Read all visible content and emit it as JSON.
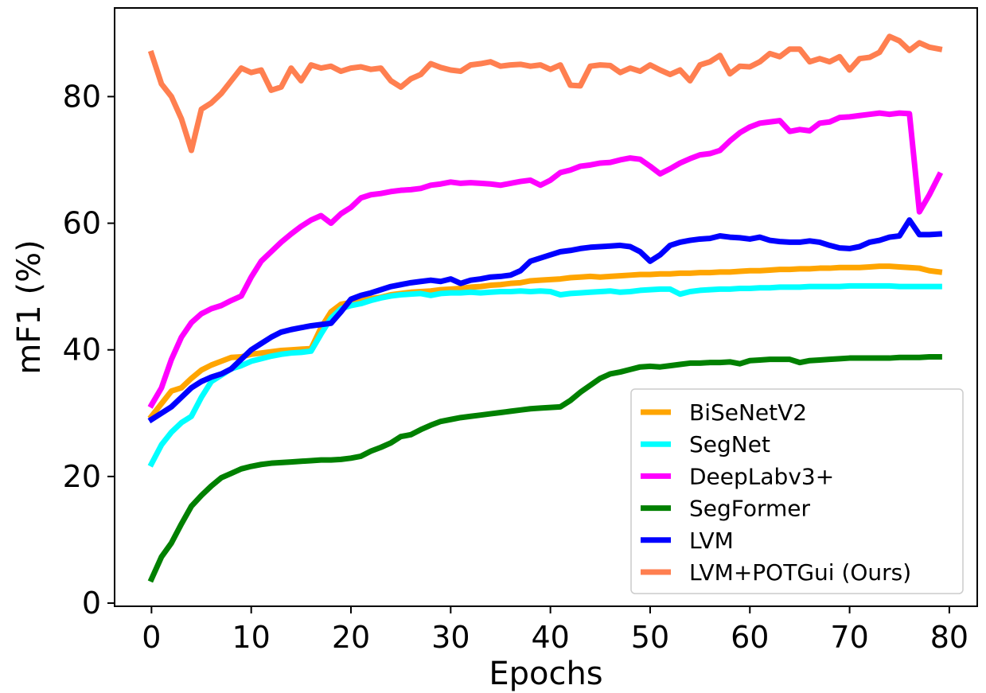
{
  "chart_data": {
    "type": "line",
    "title": "",
    "xlabel": "Epochs",
    "ylabel": "mF1 (%)",
    "xlim": [
      -3.7,
      82.8
    ],
    "ylim": [
      -0.5,
      94
    ],
    "xticks": [
      0,
      10,
      20,
      30,
      40,
      50,
      60,
      70,
      80
    ],
    "yticks": [
      0,
      20,
      40,
      60,
      80
    ],
    "grid": false,
    "legend_position": "lower-right",
    "series": [
      {
        "name": "BiSeNetV2",
        "color": "#ffa500",
        "values": [
          29.5,
          31.5,
          33.5,
          34.0,
          35.5,
          36.8,
          37.6,
          38.2,
          38.8,
          38.9,
          39.3,
          39.5,
          39.7,
          39.9,
          40.0,
          40.1,
          40.2,
          43.5,
          46.0,
          47.2,
          47.5,
          47.8,
          48.1,
          48.3,
          48.7,
          48.9,
          49.1,
          49.2,
          49.3,
          49.5,
          49.6,
          49.7,
          49.9,
          50.0,
          50.2,
          50.3,
          50.5,
          50.6,
          50.9,
          51.0,
          51.1,
          51.2,
          51.4,
          51.5,
          51.6,
          51.5,
          51.6,
          51.7,
          51.8,
          51.9,
          51.9,
          52.0,
          52.0,
          52.1,
          52.1,
          52.2,
          52.2,
          52.3,
          52.3,
          52.4,
          52.5,
          52.5,
          52.6,
          52.7,
          52.7,
          52.8,
          52.8,
          52.9,
          52.9,
          53.0,
          53.0,
          53.0,
          53.1,
          53.2,
          53.2,
          53.1,
          53.0,
          52.9,
          52.5,
          52.3
        ]
      },
      {
        "name": "SegNet",
        "color": "#00ffff",
        "values": [
          22.0,
          25.0,
          27.0,
          28.5,
          29.5,
          32.5,
          35.0,
          36.0,
          37.0,
          37.5,
          38.2,
          38.6,
          39.0,
          39.3,
          39.5,
          39.6,
          39.8,
          42.5,
          45.0,
          46.5,
          47.0,
          47.3,
          47.8,
          48.2,
          48.5,
          48.7,
          48.8,
          48.9,
          48.6,
          48.9,
          49.0,
          49.0,
          49.1,
          49.0,
          49.1,
          49.2,
          49.2,
          49.3,
          49.2,
          49.3,
          49.2,
          48.7,
          48.9,
          49.0,
          49.1,
          49.2,
          49.3,
          49.1,
          49.2,
          49.4,
          49.5,
          49.6,
          49.6,
          48.8,
          49.2,
          49.4,
          49.5,
          49.6,
          49.6,
          49.7,
          49.7,
          49.8,
          49.8,
          49.9,
          49.9,
          49.9,
          50.0,
          50.0,
          50.0,
          50.0,
          50.1,
          50.1,
          50.1,
          50.1,
          50.1,
          50.0,
          50.0,
          50.0,
          50.0,
          50.0
        ]
      },
      {
        "name": "DeepLabv3+",
        "color": "#ff00ff",
        "values": [
          31.3,
          34.0,
          38.5,
          42.0,
          44.3,
          45.7,
          46.5,
          47.0,
          47.8,
          48.5,
          51.5,
          54.0,
          55.5,
          57.0,
          58.3,
          59.5,
          60.5,
          61.2,
          60.0,
          61.5,
          62.5,
          64.0,
          64.5,
          64.7,
          65.0,
          65.2,
          65.3,
          65.5,
          66.0,
          66.2,
          66.5,
          66.3,
          66.4,
          66.3,
          66.2,
          66.0,
          66.3,
          66.6,
          66.8,
          66.0,
          66.8,
          68.0,
          68.4,
          69.0,
          69.2,
          69.5,
          69.6,
          70.0,
          70.3,
          70.1,
          69.0,
          67.8,
          68.6,
          69.5,
          70.2,
          70.8,
          71.0,
          71.5,
          73.0,
          74.3,
          75.2,
          75.8,
          76.0,
          76.2,
          74.5,
          74.8,
          74.6,
          75.8,
          76.0,
          76.7,
          76.8,
          77.0,
          77.2,
          77.4,
          77.2,
          77.4,
          77.3,
          61.8,
          64.5,
          67.6
        ]
      },
      {
        "name": "SegFormer",
        "color": "#008000",
        "values": [
          3.8,
          7.3,
          9.5,
          12.5,
          15.3,
          17.0,
          18.5,
          19.8,
          20.5,
          21.2,
          21.6,
          21.9,
          22.1,
          22.2,
          22.3,
          22.4,
          22.5,
          22.6,
          22.6,
          22.7,
          22.9,
          23.2,
          24.0,
          24.6,
          25.3,
          26.3,
          26.6,
          27.4,
          28.1,
          28.7,
          29.0,
          29.3,
          29.5,
          29.7,
          29.9,
          30.1,
          30.3,
          30.5,
          30.7,
          30.8,
          30.9,
          31.0,
          32.0,
          33.3,
          34.4,
          35.5,
          36.2,
          36.5,
          36.9,
          37.3,
          37.4,
          37.3,
          37.5,
          37.7,
          37.9,
          37.9,
          38.0,
          38.0,
          38.1,
          37.8,
          38.3,
          38.4,
          38.5,
          38.5,
          38.5,
          38.0,
          38.3,
          38.4,
          38.5,
          38.6,
          38.7,
          38.7,
          38.7,
          38.7,
          38.7,
          38.8,
          38.8,
          38.8,
          38.9,
          38.9
        ]
      },
      {
        "name": "LVM",
        "color": "#0000ff",
        "values": [
          29.0,
          30.0,
          31.0,
          32.5,
          34.0,
          35.0,
          35.7,
          36.2,
          37.0,
          38.5,
          40.0,
          41.0,
          42.0,
          42.8,
          43.2,
          43.5,
          43.8,
          44.0,
          44.2,
          46.0,
          48.0,
          48.6,
          49.0,
          49.5,
          50.0,
          50.3,
          50.6,
          50.8,
          51.0,
          50.8,
          51.2,
          50.5,
          51.0,
          51.2,
          51.5,
          51.6,
          51.8,
          52.5,
          54.0,
          54.5,
          55.0,
          55.5,
          55.7,
          56.0,
          56.2,
          56.3,
          56.4,
          56.5,
          56.3,
          55.5,
          54.0,
          55.0,
          56.5,
          57.0,
          57.3,
          57.5,
          57.6,
          58.0,
          57.8,
          57.7,
          57.5,
          57.8,
          57.3,
          57.1,
          57.0,
          57.0,
          57.2,
          57.0,
          56.5,
          56.1,
          56.0,
          56.3,
          57.0,
          57.3,
          57.8,
          58.0,
          60.5,
          58.2,
          58.2,
          58.3
        ]
      },
      {
        "name": "LVM+POTGui (Ours)",
        "color": "#ff7f50",
        "values": [
          86.8,
          82.0,
          80.0,
          76.5,
          71.5,
          78.0,
          79.0,
          80.5,
          82.5,
          84.5,
          83.8,
          84.2,
          81.0,
          81.5,
          84.5,
          82.5,
          85.0,
          84.5,
          84.8,
          84.0,
          84.5,
          84.7,
          84.3,
          84.5,
          82.5,
          81.5,
          82.8,
          83.5,
          85.2,
          84.6,
          84.2,
          84.0,
          85.0,
          85.2,
          85.5,
          84.8,
          85.0,
          85.1,
          84.8,
          85.0,
          84.3,
          85.0,
          81.8,
          81.7,
          84.8,
          85.0,
          84.9,
          83.8,
          84.5,
          84.0,
          85.0,
          84.2,
          83.5,
          84.2,
          82.5,
          85.0,
          85.5,
          86.5,
          83.6,
          84.8,
          84.7,
          85.5,
          86.8,
          86.3,
          87.5,
          87.5,
          85.5,
          86.0,
          85.5,
          86.3,
          84.2,
          86.0,
          86.2,
          87.0,
          89.5,
          88.8,
          87.3,
          88.5,
          87.8,
          87.5
        ]
      }
    ]
  }
}
